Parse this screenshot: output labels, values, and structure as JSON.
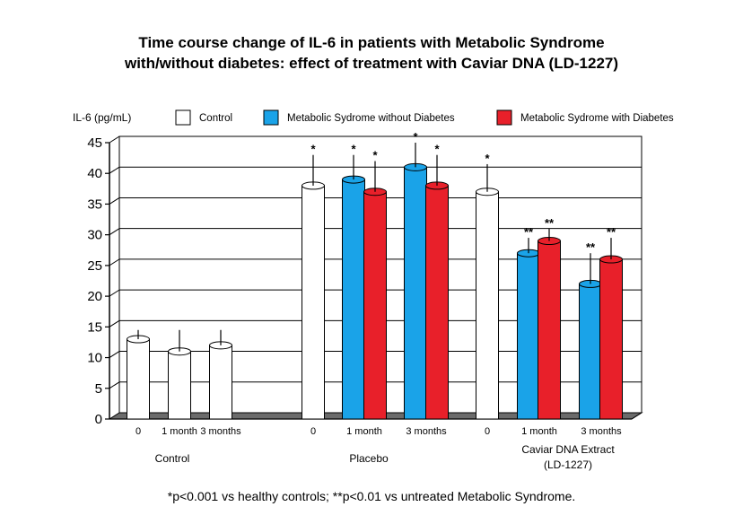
{
  "title_line1": "Time course change of IL-6 in patients with Metabolic Syndrome",
  "title_line2": "with/without diabetes: effect of treatment with Caviar DNA (LD-1227)",
  "footnote": "*p<0.001 vs healthy controls; **p<0.01 vs untreated Metabolic Syndrome.",
  "colors": {
    "white": "#ffffff",
    "blue": "#1aa3e8",
    "red": "#e8202a"
  },
  "chart_data": {
    "type": "bar",
    "ylabel": "IL-6 (pg/mL)",
    "ylim": [
      0,
      45
    ],
    "yticks": [
      0,
      5,
      10,
      15,
      20,
      25,
      30,
      35,
      40,
      45
    ],
    "grid": true,
    "legend": [
      {
        "name": "Control",
        "color": "white"
      },
      {
        "name": "Metabolic Sydrome without Diabetes",
        "color": "blue"
      },
      {
        "name": "Metabolic Sydrome with Diabetes",
        "color": "red"
      }
    ],
    "groups": [
      {
        "label": "Control",
        "bars": [
          {
            "tick": "0",
            "series": "white",
            "value": 13,
            "err": 1.5,
            "sig": ""
          },
          {
            "tick": "1 month",
            "series": "white",
            "value": 11,
            "err": 3.5,
            "sig": ""
          },
          {
            "tick": "3 months",
            "series": "white",
            "value": 12,
            "err": 2.5,
            "sig": ""
          }
        ]
      },
      {
        "label": "Placebo",
        "bars": [
          {
            "tick": "0",
            "series": "white",
            "value": 38,
            "err": 5,
            "sig": "*"
          },
          {
            "tick": "1 month",
            "series": "blue",
            "value": 39,
            "err": 4,
            "sig": "*"
          },
          {
            "tick": "",
            "series": "red",
            "value": 37,
            "err": 5,
            "sig": "*"
          },
          {
            "tick": "3 months",
            "series": "blue",
            "value": 41,
            "err": 4,
            "sig": "*"
          },
          {
            "tick": "",
            "series": "red",
            "value": 38,
            "err": 5,
            "sig": "*"
          }
        ]
      },
      {
        "label": "Caviar DNA Extract",
        "sublabel": "(LD-1227)",
        "bars": [
          {
            "tick": "0",
            "series": "white",
            "value": 37,
            "err": 4.5,
            "sig": "*"
          },
          {
            "tick": "1 month",
            "series": "blue",
            "value": 27,
            "err": 2.5,
            "sig": "**"
          },
          {
            "tick": "",
            "series": "red",
            "value": 29,
            "err": 2,
            "sig": "**"
          },
          {
            "tick": "3 months",
            "series": "blue",
            "value": 22,
            "err": 5,
            "sig": "**"
          },
          {
            "tick": "",
            "series": "red",
            "value": 26,
            "err": 3.5,
            "sig": "**"
          }
        ]
      }
    ]
  }
}
